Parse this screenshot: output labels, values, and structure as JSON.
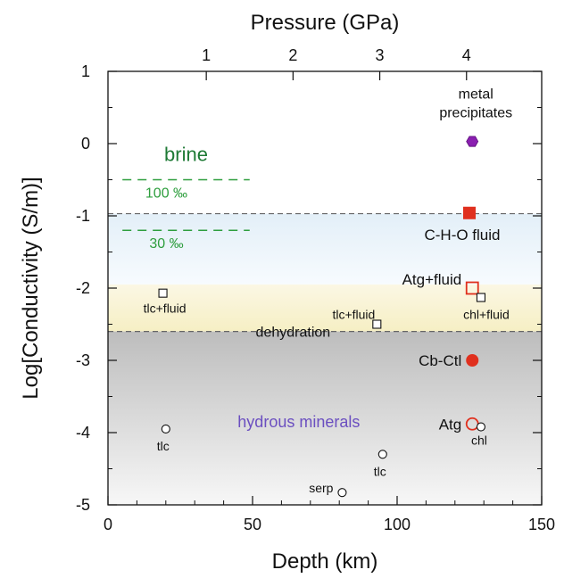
{
  "chart_data": {
    "type": "scatter",
    "xlabel": "Depth (km)",
    "ylabel": "Log[Conductivity (S/m)]",
    "top_axis_label": "Pressure (GPa)",
    "xlim": [
      0,
      150
    ],
    "ylim": [
      -5,
      1
    ],
    "x_ticks": [
      0,
      50,
      100,
      150
    ],
    "y_ticks": [
      1,
      0,
      -1,
      -2,
      -3,
      -4,
      -5
    ],
    "top_ticks": [
      {
        "label": "1",
        "depth": 34
      },
      {
        "label": "2",
        "depth": 64
      },
      {
        "label": "3",
        "depth": 94
      },
      {
        "label": "4",
        "depth": 124
      }
    ],
    "grid": false,
    "colors": {
      "brine": "#2e9e3e",
      "brine_title": "#1e7a35",
      "atg_red": "#e0301e",
      "metal": "#8a1fb0",
      "hydrous": "#6b4fc0",
      "fluid_band": "#e8f3fb",
      "dehydration_band": "#fbf6d8",
      "mineral_zone": "#c9c9c9"
    },
    "regions": [
      {
        "name": "fluid",
        "ymin": -1.95,
        "ymax": -0.97
      },
      {
        "name": "dehydration",
        "ymin": -2.6,
        "ymax": -1.95
      },
      {
        "name": "minerals",
        "ymin": -5,
        "ymax": -2.6
      }
    ],
    "dashed_lines": [
      {
        "y": -0.97,
        "label": "C-H-O fluid"
      },
      {
        "y": -2.6,
        "label": "dehydration"
      }
    ],
    "brine": {
      "title": "brine",
      "levels": [
        {
          "y": -0.5,
          "label": "100 ‰"
        },
        {
          "y": -1.2,
          "label": "30 ‰"
        }
      ],
      "xrange": [
        5,
        49
      ]
    },
    "points": [
      {
        "x": 126,
        "y": 0.03,
        "marker": "hexagon",
        "color": "#8a1fb0",
        "label": "metal precipitates"
      },
      {
        "x": 125,
        "y": -0.96,
        "marker": "filled-square",
        "color": "#e0301e",
        "label": "C-H-O fluid"
      },
      {
        "x": 126,
        "y": -2.0,
        "marker": "open-square",
        "color": "#e0301e",
        "label": "Atg+fluid"
      },
      {
        "x": 129,
        "y": -2.13,
        "marker": "open-square",
        "color": "#111111",
        "label": "chl+fluid"
      },
      {
        "x": 19,
        "y": -2.07,
        "marker": "open-square",
        "color": "#111111",
        "label": "tlc+fluid"
      },
      {
        "x": 93,
        "y": -2.5,
        "marker": "open-square",
        "color": "#111111",
        "label": "tlc+fluid"
      },
      {
        "x": 126,
        "y": -3.0,
        "marker": "filled-circle",
        "color": "#e0301e",
        "label": "Cb-Ctl"
      },
      {
        "x": 126,
        "y": -3.88,
        "marker": "open-circle",
        "color": "#e0301e",
        "label": "Atg"
      },
      {
        "x": 129,
        "y": -3.92,
        "marker": "open-circle-small",
        "color": "#111111",
        "label": "chl"
      },
      {
        "x": 20,
        "y": -3.95,
        "marker": "open-circle-small",
        "color": "#111111",
        "label": "tlc"
      },
      {
        "x": 95,
        "y": -4.3,
        "marker": "open-circle-small",
        "color": "#111111",
        "label": "tlc"
      },
      {
        "x": 81,
        "y": -4.83,
        "marker": "open-circle-small",
        "color": "#111111",
        "label": "serp"
      }
    ],
    "annotations": [
      {
        "text": "hydrous minerals",
        "x": 66,
        "y": -3.85,
        "color": "#6b4fc0"
      }
    ]
  }
}
